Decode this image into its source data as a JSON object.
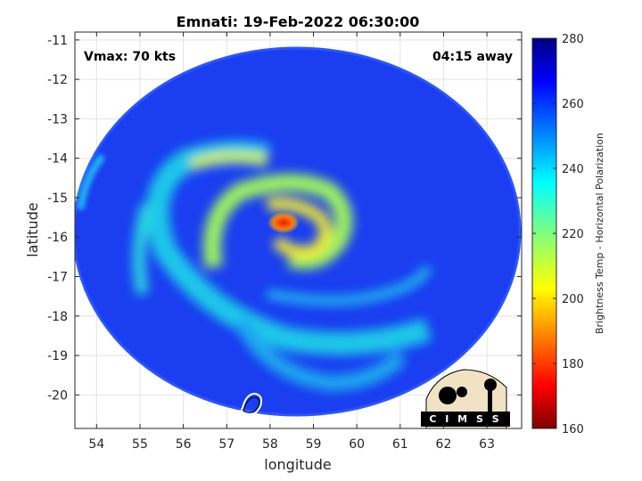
{
  "chart_data": {
    "type": "heatmap",
    "title": "Emnati: 19-Feb-2022 06:30:00",
    "xlabel": "longitude",
    "ylabel": "latitude",
    "xlim": [
      53.5,
      63.8
    ],
    "ylim": [
      -20.85,
      -10.8
    ],
    "x_ticks": [
      54,
      55,
      56,
      57,
      58,
      59,
      60,
      61,
      62,
      63
    ],
    "y_ticks": [
      -11,
      -12,
      -13,
      -14,
      -15,
      -16,
      -17,
      -18,
      -19,
      -20
    ],
    "grid": true,
    "annotations": {
      "vmax": "Vmax: 70 kts",
      "time_away": "04:15 away"
    },
    "colorbar": {
      "label": "Brightness Temp - Horizontal Polarization",
      "range": [
        160,
        280
      ],
      "ticks": [
        160,
        180,
        200,
        220,
        240,
        260,
        280
      ],
      "colormap": "jet"
    },
    "storm_center": {
      "lon": 58.35,
      "lat": -15.65,
      "min_temp": 185
    },
    "swath": {
      "center_lon": 58.65,
      "center_lat": -15.85,
      "background_temp": 262
    },
    "logo": "C I M S S"
  }
}
